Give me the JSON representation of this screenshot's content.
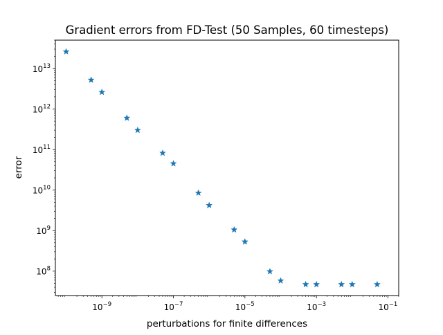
{
  "chart_data": {
    "type": "scatter",
    "title": "Gradient errors from FD-Test (50 Samples, 60 timesteps)",
    "xlabel": "perturbations for finite differences",
    "ylabel": "error",
    "xscale": "log",
    "yscale": "log",
    "xlim": [
      5e-11,
      0.2
    ],
    "ylim": [
      25000000.0,
      50000000000000.0
    ],
    "grid": false,
    "marker": "star",
    "color": "#1f77b4",
    "x_ticks": [
      {
        "value": 1e-09,
        "base": "10",
        "exp": "−9"
      },
      {
        "value": 1e-07,
        "base": "10",
        "exp": "−7"
      },
      {
        "value": 1e-05,
        "base": "10",
        "exp": "−5"
      },
      {
        "value": 0.001,
        "base": "10",
        "exp": "−3"
      },
      {
        "value": 0.1,
        "base": "10",
        "exp": "−1"
      }
    ],
    "y_ticks": [
      {
        "value": 100000000.0,
        "base": "10",
        "exp": "8"
      },
      {
        "value": 1000000000.0,
        "base": "10",
        "exp": "9"
      },
      {
        "value": 10000000000.0,
        "base": "10",
        "exp": "10"
      },
      {
        "value": 100000000000.0,
        "base": "10",
        "exp": "11"
      },
      {
        "value": 1000000000000.0,
        "base": "10",
        "exp": "12"
      },
      {
        "value": 10000000000000.0,
        "base": "10",
        "exp": "13"
      }
    ],
    "x": [
      1e-10,
      5e-10,
      1e-09,
      5e-09,
      1e-08,
      5e-08,
      1e-07,
      5e-07,
      1e-06,
      5e-06,
      1e-05,
      5e-05,
      0.0001,
      0.0005,
      0.001,
      0.005,
      0.01,
      0.05
    ],
    "y": [
      26000000000000.0,
      5200000000000.0,
      2600000000000.0,
      600000000000.0,
      300000000000.0,
      82000000000.0,
      45000000000.0,
      8500000000.0,
      4200000000.0,
      1050000000.0,
      530000000.0,
      98000000.0,
      58000000.0,
      47000000.0,
      47000000.0,
      47000000.0,
      47000000.0,
      47000000.0
    ]
  }
}
